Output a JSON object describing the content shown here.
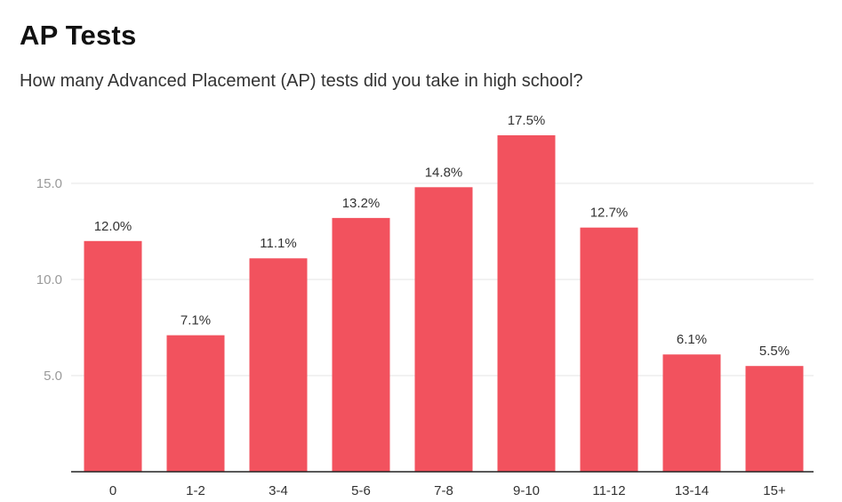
{
  "colors": {
    "bar": "#f2525e",
    "grid": "#e6e6e6",
    "axis": "#222222"
  },
  "chart_data": {
    "type": "bar",
    "title": "AP Tests",
    "subtitle": "How many Advanced Placement (AP) tests did you take in high school?",
    "xlabel": "",
    "ylabel": "",
    "categories": [
      "0",
      "1-2",
      "3-4",
      "5-6",
      "7-8",
      "9-10",
      "11-12",
      "13-14",
      "15+"
    ],
    "values": [
      12.0,
      7.1,
      11.1,
      13.2,
      14.8,
      17.5,
      12.7,
      6.1,
      5.5
    ],
    "value_labels": [
      "12.0%",
      "7.1%",
      "11.1%",
      "13.2%",
      "14.8%",
      "17.5%",
      "12.7%",
      "6.1%",
      "5.5%"
    ],
    "ylim": [
      0,
      17.5
    ],
    "yticks": [
      5.0,
      10.0,
      15.0
    ],
    "ytick_labels": [
      "5.0",
      "10.0",
      "15.0"
    ],
    "grid": true,
    "legend": "none"
  }
}
